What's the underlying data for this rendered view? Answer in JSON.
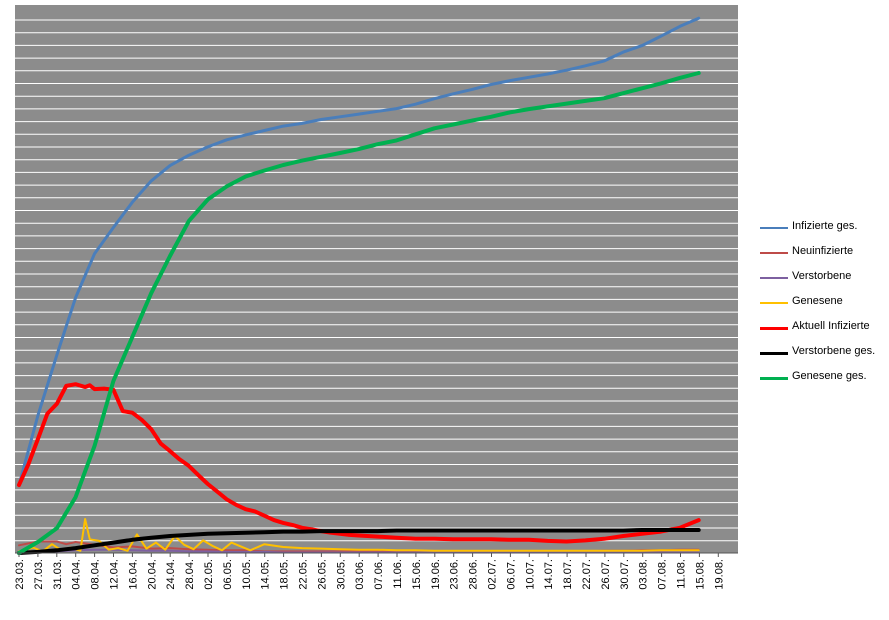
{
  "chart_data": {
    "type": "line",
    "title": "",
    "xlabel": "",
    "ylabel": "",
    "grid": true,
    "legend_position": "right",
    "plot_background": "#8c8c8c",
    "gridline_color": "#ffffff",
    "tick_labels": [
      "23.03.",
      "27.03.",
      "31.03.",
      "04.04.",
      "08.04.",
      "12.04.",
      "16.04.",
      "20.04.",
      "24.04.",
      "28.04.",
      "02.05.",
      "06.05.",
      "10.05.",
      "14.05.",
      "18.05.",
      "22.05.",
      "26.05.",
      "30.05.",
      "03.06.",
      "07.06.",
      "11.06.",
      "15.06.",
      "19.06.",
      "23.06.",
      "28.06.",
      "02.07.",
      "06.07.",
      "10.07.",
      "14.07.",
      "18.07.",
      "22.07.",
      "26.07.",
      "30.07.",
      "03.08.",
      "07.08.",
      "11.08.",
      "15.08.",
      "19.08."
    ],
    "x_units": "day index from 23.03. (0 = 23.03., 4 days per tick label)",
    "x_range": [
      0,
      148
    ],
    "y_range": [
      0,
      100
    ],
    "y_units": "relative (axis has no printed values)",
    "series": [
      {
        "name": "Infizierte ges.",
        "color": "#4a7ebb",
        "width": 3,
        "x": [
          0,
          4,
          8,
          12,
          16,
          20,
          24,
          28,
          32,
          36,
          40,
          44,
          48,
          52,
          56,
          60,
          64,
          68,
          72,
          76,
          80,
          84,
          88,
          92,
          96,
          100,
          104,
          108,
          112,
          116,
          120,
          124,
          128,
          132,
          136,
          140,
          144
        ],
        "y": [
          12.4,
          25.1,
          36.1,
          46.6,
          54.6,
          59.4,
          64.0,
          67.9,
          70.7,
          72.6,
          74.1,
          75.4,
          76.3,
          77.1,
          77.9,
          78.4,
          79.1,
          79.6,
          80.1,
          80.6,
          81.1,
          81.9,
          82.9,
          83.8,
          84.6,
          85.5,
          86.2,
          86.8,
          87.4,
          88.1,
          88.9,
          89.8,
          91.4,
          92.6,
          94.3,
          96.1,
          97.6
        ]
      },
      {
        "name": "Neuinfizierte",
        "color": "#be4b48",
        "width": 2,
        "x": [
          0,
          4,
          8,
          10,
          12,
          16,
          20,
          24,
          28,
          32,
          36,
          40,
          44,
          48,
          52,
          56,
          60,
          64,
          68,
          72,
          76,
          80,
          84,
          88,
          92,
          96,
          100,
          104,
          108,
          112,
          116,
          120,
          124,
          128,
          132,
          136,
          140,
          144
        ],
        "y": [
          1.4,
          2.1,
          2.1,
          1.6,
          2.0,
          1.5,
          1.0,
          1.2,
          0.8,
          0.9,
          0.7,
          0.6,
          0.5,
          0.5,
          0.3,
          0.3,
          0.3,
          0.3,
          0.3,
          0.3,
          0.3,
          0.3,
          0.3,
          0.3,
          0.3,
          0.3,
          0.3,
          0.3,
          0.3,
          0.3,
          0.3,
          0.3,
          0.4,
          0.4,
          0.5,
          0.5,
          0.6,
          0.6
        ]
      },
      {
        "name": "Verstorbene",
        "color": "#7d60a0",
        "width": 2,
        "x": [
          0,
          4,
          8,
          12,
          16,
          20,
          24,
          28,
          32,
          36,
          40,
          44,
          48,
          52,
          56,
          60,
          64,
          68,
          72,
          76,
          80,
          84,
          88,
          92,
          96,
          100,
          104,
          108,
          112,
          116,
          120,
          124,
          128,
          132,
          136,
          140,
          144
        ],
        "y": [
          0.1,
          0.2,
          0.3,
          0.5,
          0.6,
          0.6,
          0.5,
          0.4,
          0.4,
          0.3,
          0.3,
          0.2,
          0.2,
          0.2,
          0.1,
          0.1,
          0.1,
          0.1,
          0.1,
          0.1,
          0.1,
          0.1,
          0.1,
          0.1,
          0.1,
          0.1,
          0.1,
          0.1,
          0.1,
          0.1,
          0.1,
          0.1,
          0.1,
          0.1,
          0.1,
          0.1,
          0.1
        ]
      },
      {
        "name": "Genesene",
        "color": "#ffc000",
        "width": 2,
        "x": [
          0,
          3,
          5,
          7,
          9,
          11,
          13,
          14,
          15,
          17,
          19,
          21,
          23,
          25,
          27,
          29,
          31,
          33,
          35,
          37,
          39,
          41,
          43,
          45,
          47,
          49,
          52,
          56,
          60,
          64,
          68,
          72,
          76,
          80,
          84,
          88,
          92,
          96,
          100,
          104,
          108,
          112,
          116,
          120,
          124,
          128,
          132,
          136,
          140,
          144
        ],
        "y": [
          0.3,
          1.0,
          0.3,
          1.6,
          0.5,
          1.0,
          0.4,
          6.2,
          2.5,
          2.2,
          0.6,
          0.9,
          0.4,
          3.4,
          0.8,
          1.9,
          0.6,
          3.1,
          1.5,
          0.7,
          2.3,
          1.3,
          0.5,
          1.9,
          1.2,
          0.5,
          1.6,
          1.1,
          0.9,
          0.8,
          0.7,
          0.6,
          0.6,
          0.5,
          0.5,
          0.4,
          0.4,
          0.4,
          0.4,
          0.4,
          0.4,
          0.4,
          0.4,
          0.4,
          0.4,
          0.4,
          0.4,
          0.5,
          0.5,
          0.5
        ]
      },
      {
        "name": "Aktuell Infizierte",
        "color": "#ff0000",
        "width": 4,
        "x": [
          0,
          2,
          4,
          6,
          8,
          10,
          12,
          14,
          15,
          16,
          18,
          20,
          22,
          24,
          26,
          28,
          30,
          32,
          34,
          36,
          38,
          40,
          42,
          44,
          46,
          48,
          50,
          52,
          54,
          56,
          58,
          60,
          62,
          64,
          66,
          68,
          70,
          72,
          76,
          80,
          84,
          88,
          92,
          96,
          100,
          104,
          108,
          112,
          116,
          120,
          124,
          128,
          132,
          136,
          140,
          144
        ],
        "y": [
          12.4,
          16.2,
          20.8,
          25.4,
          27.2,
          30.5,
          30.8,
          30.3,
          30.6,
          29.9,
          30.0,
          29.8,
          25.9,
          25.6,
          24.3,
          22.6,
          20.0,
          18.6,
          17.1,
          15.9,
          14.2,
          12.6,
          11.2,
          9.8,
          8.8,
          8.0,
          7.6,
          6.8,
          6.0,
          5.5,
          5.1,
          4.6,
          4.3,
          4.0,
          3.7,
          3.5,
          3.3,
          3.2,
          3.0,
          2.8,
          2.6,
          2.6,
          2.5,
          2.5,
          2.5,
          2.4,
          2.4,
          2.2,
          2.1,
          2.3,
          2.6,
          3.1,
          3.5,
          3.9,
          4.6,
          6.0
        ]
      },
      {
        "name": "Verstorbene ges.",
        "color": "#000000",
        "width": 4,
        "x": [
          0,
          4,
          8,
          12,
          16,
          20,
          24,
          28,
          32,
          36,
          40,
          44,
          48,
          52,
          56,
          60,
          64,
          68,
          72,
          76,
          80,
          84,
          88,
          92,
          96,
          100,
          104,
          108,
          112,
          116,
          120,
          124,
          128,
          132,
          136,
          140,
          144
        ],
        "y": [
          0.0,
          0.2,
          0.5,
          0.9,
          1.4,
          1.9,
          2.4,
          2.8,
          3.1,
          3.3,
          3.5,
          3.6,
          3.7,
          3.8,
          3.9,
          3.9,
          4.0,
          4.0,
          4.0,
          4.0,
          4.1,
          4.1,
          4.1,
          4.1,
          4.1,
          4.1,
          4.1,
          4.1,
          4.1,
          4.1,
          4.1,
          4.1,
          4.1,
          4.2,
          4.2,
          4.2,
          4.2
        ]
      },
      {
        "name": "Genesene ges.",
        "color": "#00b050",
        "width": 4,
        "x": [
          0,
          4,
          8,
          12,
          16,
          20,
          24,
          28,
          32,
          36,
          40,
          44,
          48,
          52,
          56,
          60,
          64,
          68,
          72,
          76,
          80,
          84,
          88,
          92,
          96,
          100,
          104,
          108,
          112,
          116,
          120,
          124,
          128,
          132,
          136,
          140,
          144
        ],
        "y": [
          0.0,
          2.0,
          4.5,
          10.2,
          19.5,
          31.4,
          39.4,
          47.4,
          54.2,
          60.6,
          64.5,
          66.9,
          68.7,
          69.8,
          70.8,
          71.6,
          72.3,
          73.0,
          73.7,
          74.6,
          75.3,
          76.4,
          77.5,
          78.2,
          78.9,
          79.6,
          80.4,
          81.0,
          81.5,
          82.0,
          82.5,
          83.0,
          83.9,
          84.8,
          85.7,
          86.7,
          87.6
        ]
      }
    ]
  }
}
